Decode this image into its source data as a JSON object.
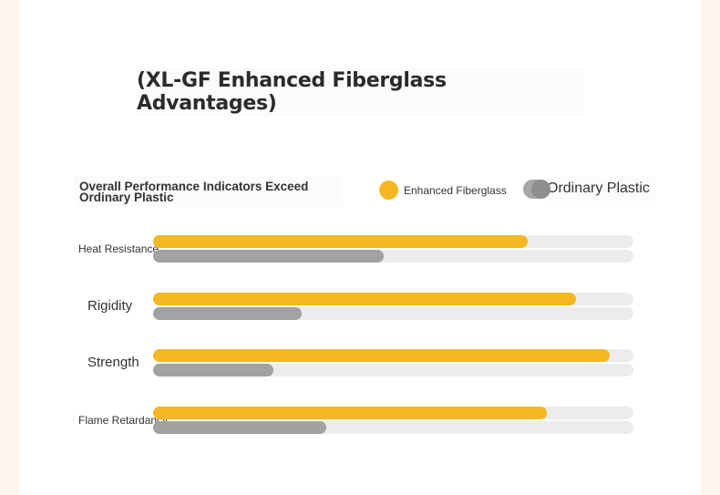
{
  "title": "(XL-GF Enhanced Fiberglass Advantages)",
  "colors": {
    "enhanced": "#f5b722",
    "plastic": "#a2a2a2",
    "track": "#ececec"
  },
  "chart_data": {
    "type": "bar",
    "orientation": "horizontal",
    "title": "(XL-GF Enhanced Fiberglass Advantages)",
    "subtitle": "Overall Performance Indicators Exceed Ordinary Plastic",
    "categories": [
      "Heat Resistance",
      "Rigidity",
      "Strength",
      "Flame Retardancy"
    ],
    "series": [
      {
        "name": "Enhanced Fiberglass",
        "values": [
          78,
          88,
          95,
          82
        ]
      },
      {
        "name": "Ordinary Plastic",
        "values": [
          48,
          31,
          25,
          36
        ]
      }
    ],
    "xlim": [
      0,
      100
    ],
    "grid": false,
    "legend": "top-right"
  }
}
